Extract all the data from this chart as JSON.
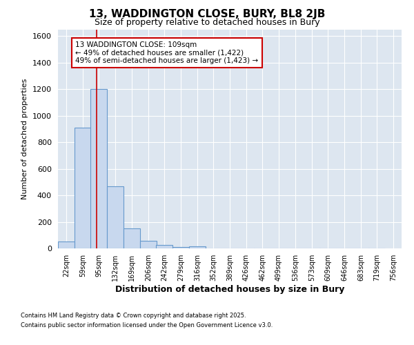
{
  "title1": "13, WADDINGTON CLOSE, BURY, BL8 2JB",
  "title2": "Size of property relative to detached houses in Bury",
  "xlabel": "Distribution of detached houses by size in Bury",
  "ylabel": "Number of detached properties",
  "bin_labels": [
    "22sqm",
    "59sqm",
    "95sqm",
    "132sqm",
    "169sqm",
    "206sqm",
    "242sqm",
    "279sqm",
    "316sqm",
    "352sqm",
    "389sqm",
    "426sqm",
    "462sqm",
    "499sqm",
    "536sqm",
    "573sqm",
    "609sqm",
    "646sqm",
    "683sqm",
    "719sqm",
    "756sqm"
  ],
  "bin_edges": [
    22,
    59,
    95,
    132,
    169,
    206,
    242,
    279,
    316,
    352,
    389,
    426,
    462,
    499,
    536,
    573,
    609,
    646,
    683,
    719,
    756
  ],
  "bar_heights": [
    50,
    910,
    1200,
    470,
    150,
    55,
    25,
    10,
    15,
    0,
    0,
    0,
    0,
    0,
    0,
    0,
    0,
    0,
    0,
    0
  ],
  "bar_color": "#c8d8ee",
  "bar_edgecolor": "#6699cc",
  "bar_linewidth": 0.8,
  "red_line_x": 109,
  "ylim": [
    0,
    1650
  ],
  "yticks": [
    0,
    200,
    400,
    600,
    800,
    1000,
    1200,
    1400,
    1600
  ],
  "fig_bg_color": "#ffffff",
  "plot_bg_color": "#dde6f0",
  "grid_color": "#ffffff",
  "annotation_text": "13 WADDINGTON CLOSE: 109sqm\n← 49% of detached houses are smaller (1,422)\n49% of semi-detached houses are larger (1,423) →",
  "annotation_box_edgecolor": "#cc0000",
  "annotation_box_facecolor": "#ffffff",
  "footnote1": "Contains HM Land Registry data © Crown copyright and database right 2025.",
  "footnote2": "Contains public sector information licensed under the Open Government Licence v3.0."
}
